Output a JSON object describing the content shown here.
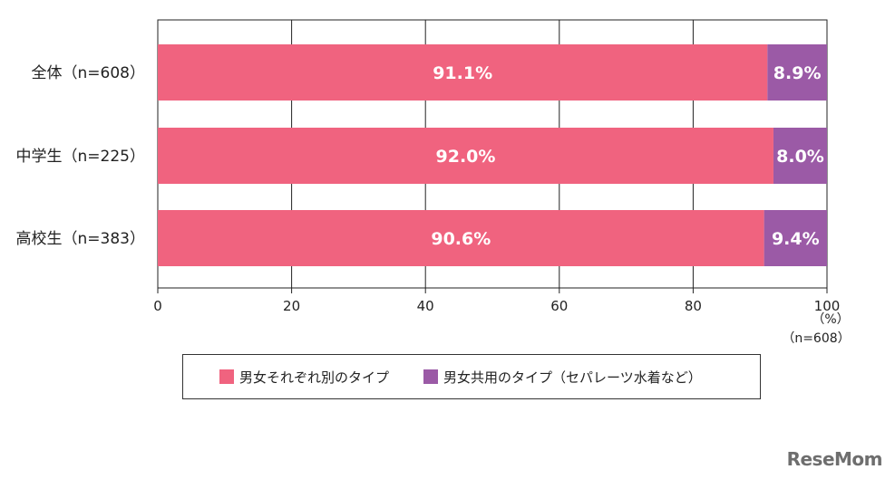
{
  "chart_data": {
    "type": "bar",
    "orientation": "horizontal",
    "stacked": true,
    "categories": [
      "全体（n=608）",
      "中学生（n=225）",
      "高校生（n=383）"
    ],
    "series": [
      {
        "name": "男女それぞれ別のタイプ",
        "values": [
          91.1,
          92.0,
          90.6
        ],
        "labels": [
          "91.1%",
          "92.0%",
          "90.6%"
        ],
        "color": "#f0637f"
      },
      {
        "name": "男女共用のタイプ（セパレーツ水着など）",
        "values": [
          8.9,
          8.0,
          9.4
        ],
        "labels": [
          "8.9%",
          "8.0%",
          "9.4%"
        ],
        "color": "#9b5aa6"
      }
    ],
    "xlim": [
      0,
      100
    ],
    "xticks": [
      "0",
      "20",
      "40",
      "60",
      "80",
      "100"
    ],
    "unit": "（%）",
    "sample_note": "（n=608）",
    "grid": true,
    "legend_position": "bottom"
  },
  "brand": "ReseMom"
}
